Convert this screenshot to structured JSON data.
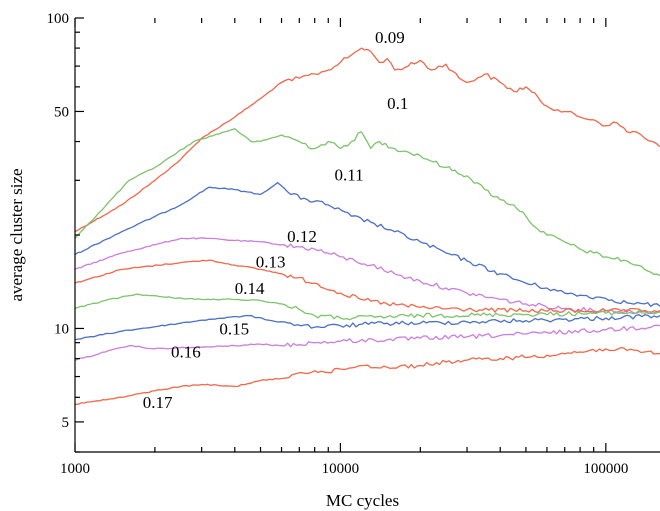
{
  "chart_data": {
    "type": "line",
    "title": "",
    "xlabel": "MC cycles",
    "ylabel": "average cluster size",
    "x_scale": "log",
    "y_scale": "log",
    "xlim": [
      1000,
      160000
    ],
    "ylim": [
      4,
      100
    ],
    "grid": false,
    "legend": "none",
    "x_ticks": [
      {
        "value": 1000,
        "label": "1000"
      },
      {
        "value": 10000,
        "label": "10000"
      },
      {
        "value": 100000,
        "label": "100000"
      }
    ],
    "y_ticks": [
      {
        "value": 5,
        "label": "5"
      },
      {
        "value": 10,
        "label": "10"
      },
      {
        "value": 50,
        "label": "50"
      },
      {
        "value": 100,
        "label": "100"
      }
    ],
    "series": [
      {
        "name": "0.09",
        "color": "#f0684a",
        "label_at": [
          13500,
          83
        ],
        "points": [
          [
            1000,
            20.5
          ],
          [
            1500,
            25
          ],
          [
            2000,
            30
          ],
          [
            2500,
            35
          ],
          [
            3000,
            41
          ],
          [
            4000,
            48
          ],
          [
            5000,
            55
          ],
          [
            6000,
            62
          ],
          [
            7000,
            64
          ],
          [
            8000,
            66
          ],
          [
            9000,
            68
          ],
          [
            10000,
            72
          ],
          [
            11000,
            76
          ],
          [
            12000,
            80
          ],
          [
            13000,
            78
          ],
          [
            14000,
            72
          ],
          [
            15000,
            74
          ],
          [
            16000,
            68
          ],
          [
            18000,
            70
          ],
          [
            20000,
            73
          ],
          [
            22000,
            68
          ],
          [
            25000,
            71
          ],
          [
            28000,
            64
          ],
          [
            30000,
            62
          ],
          [
            35000,
            66
          ],
          [
            40000,
            62
          ],
          [
            45000,
            58
          ],
          [
            50000,
            60
          ],
          [
            60000,
            52
          ],
          [
            70000,
            50
          ],
          [
            80000,
            48
          ],
          [
            90000,
            47
          ],
          [
            100000,
            45
          ],
          [
            110000,
            46
          ],
          [
            120000,
            43
          ],
          [
            130000,
            43
          ],
          [
            140000,
            41
          ],
          [
            150000,
            40
          ],
          [
            160000,
            38.5
          ]
        ]
      },
      {
        "name": "0.1",
        "color": "#7cc36a",
        "label_at": [
          15000,
          51
        ],
        "points": [
          [
            1000,
            19.5
          ],
          [
            1600,
            30
          ],
          [
            2000,
            33
          ],
          [
            2800,
            40
          ],
          [
            4000,
            44
          ],
          [
            4600,
            40
          ],
          [
            5000,
            40
          ],
          [
            6000,
            42
          ],
          [
            7000,
            40
          ],
          [
            8000,
            38
          ],
          [
            9000,
            40
          ],
          [
            10000,
            38
          ],
          [
            11000,
            40
          ],
          [
            12000,
            43
          ],
          [
            13000,
            38
          ],
          [
            14000,
            40
          ],
          [
            16000,
            38
          ],
          [
            18000,
            37
          ],
          [
            20000,
            36
          ],
          [
            25000,
            33
          ],
          [
            30000,
            31
          ],
          [
            35000,
            28
          ],
          [
            40000,
            26
          ],
          [
            45000,
            25
          ],
          [
            50000,
            23
          ],
          [
            55000,
            21
          ],
          [
            60000,
            20
          ],
          [
            70000,
            19
          ],
          [
            80000,
            18
          ],
          [
            90000,
            17.5
          ],
          [
            100000,
            17
          ],
          [
            120000,
            16.5
          ],
          [
            140000,
            15.5
          ],
          [
            160000,
            14.8
          ]
        ]
      },
      {
        "name": "0.11",
        "color": "#4a6fc8",
        "label_at": [
          9500,
          30
        ],
        "points": [
          [
            1000,
            17.3
          ],
          [
            1500,
            20.5
          ],
          [
            2500,
            25
          ],
          [
            3200,
            28.5
          ],
          [
            4000,
            28
          ],
          [
            5000,
            27
          ],
          [
            5800,
            29.5
          ],
          [
            6500,
            27
          ],
          [
            7500,
            26
          ],
          [
            9000,
            25
          ],
          [
            11000,
            23
          ],
          [
            13000,
            22
          ],
          [
            16000,
            20.5
          ],
          [
            20000,
            19
          ],
          [
            25000,
            17.5
          ],
          [
            30000,
            16.5
          ],
          [
            40000,
            15
          ],
          [
            50000,
            14
          ],
          [
            60000,
            13.5
          ],
          [
            70000,
            13
          ],
          [
            80000,
            12.8
          ],
          [
            100000,
            12.5
          ],
          [
            120000,
            12.1
          ],
          [
            140000,
            12
          ],
          [
            160000,
            11.8
          ]
        ]
      },
      {
        "name": "0.12",
        "color": "#cc7ddc",
        "label_at": [
          6300,
          19
        ],
        "points": [
          [
            1000,
            15.5
          ],
          [
            1500,
            17.5
          ],
          [
            2500,
            19.5
          ],
          [
            3200,
            19.5
          ],
          [
            4000,
            19.2
          ],
          [
            5000,
            19
          ],
          [
            6000,
            18.6
          ],
          [
            8000,
            18
          ],
          [
            10000,
            17
          ],
          [
            13000,
            16
          ],
          [
            16000,
            15
          ],
          [
            20000,
            14.2
          ],
          [
            25000,
            13.5
          ],
          [
            30000,
            13
          ],
          [
            40000,
            12.4
          ],
          [
            50000,
            12
          ],
          [
            70000,
            11.6
          ],
          [
            100000,
            11.4
          ],
          [
            160000,
            11.3
          ]
        ]
      },
      {
        "name": "0.13",
        "color": "#f0684a",
        "label_at": [
          4800,
          15.7
        ],
        "points": [
          [
            1000,
            14
          ],
          [
            1500,
            15.5
          ],
          [
            2500,
            16.3
          ],
          [
            3200,
            16.6
          ],
          [
            4000,
            16
          ],
          [
            5000,
            15.5
          ],
          [
            6000,
            15
          ],
          [
            8000,
            14
          ],
          [
            10000,
            13
          ],
          [
            12000,
            12.4
          ],
          [
            15000,
            12
          ],
          [
            20000,
            11.7
          ],
          [
            30000,
            11.5
          ],
          [
            50000,
            11.4
          ],
          [
            100000,
            11.4
          ],
          [
            160000,
            11.4
          ]
        ]
      },
      {
        "name": "0.14",
        "color": "#7cc36a",
        "label_at": [
          4000,
          12.9
        ],
        "points": [
          [
            1000,
            11.6
          ],
          [
            1300,
            12.3
          ],
          [
            1700,
            12.9
          ],
          [
            2200,
            12.6
          ],
          [
            3000,
            12.4
          ],
          [
            4000,
            12.4
          ],
          [
            5000,
            12.3
          ],
          [
            6000,
            12
          ],
          [
            7000,
            11.5
          ],
          [
            8000,
            11
          ],
          [
            10000,
            10.8
          ],
          [
            15000,
            10.9
          ],
          [
            20000,
            11
          ],
          [
            50000,
            11.1
          ],
          [
            100000,
            11.2
          ],
          [
            160000,
            11.3
          ]
        ]
      },
      {
        "name": "0.15",
        "color": "#4a6fc8",
        "label_at": [
          3500,
          9.55
        ],
        "points": [
          [
            1000,
            9.2
          ],
          [
            1500,
            9.8
          ],
          [
            2500,
            10.4
          ],
          [
            3200,
            10.7
          ],
          [
            4500,
            11
          ],
          [
            5500,
            10.6
          ],
          [
            6500,
            10.4
          ],
          [
            8000,
            10.1
          ],
          [
            10000,
            10.2
          ],
          [
            15000,
            10.4
          ],
          [
            20000,
            10.4
          ],
          [
            30000,
            10.5
          ],
          [
            50000,
            10.6
          ],
          [
            100000,
            10.8
          ],
          [
            160000,
            11
          ]
        ]
      },
      {
        "name": "0.16",
        "color": "#cc7ddc",
        "label_at": [
          2300,
          8.05
        ],
        "points": [
          [
            1000,
            7.9
          ],
          [
            1300,
            8.4
          ],
          [
            1600,
            8.8
          ],
          [
            2000,
            8.6
          ],
          [
            3000,
            8.7
          ],
          [
            4000,
            8.8
          ],
          [
            5000,
            8.9
          ],
          [
            6000,
            8.8
          ],
          [
            8000,
            9
          ],
          [
            10000,
            9.1
          ],
          [
            15000,
            9.2
          ],
          [
            20000,
            9.3
          ],
          [
            30000,
            9.4
          ],
          [
            50000,
            9.6
          ],
          [
            100000,
            9.9
          ],
          [
            160000,
            10.2
          ]
        ]
      },
      {
        "name": "0.17",
        "color": "#f0684a",
        "label_at": [
          1800,
          5.55
        ],
        "points": [
          [
            1000,
            5.7
          ],
          [
            1500,
            6.0
          ],
          [
            2000,
            6.3
          ],
          [
            2500,
            6.5
          ],
          [
            3000,
            6.6
          ],
          [
            4000,
            6.5
          ],
          [
            5000,
            6.8
          ],
          [
            6000,
            6.9
          ],
          [
            7000,
            7.2
          ],
          [
            8000,
            7.3
          ],
          [
            9000,
            7.2
          ],
          [
            10000,
            7.4
          ],
          [
            12000,
            7.6
          ],
          [
            15000,
            7.5
          ],
          [
            20000,
            7.6
          ],
          [
            25000,
            7.8
          ],
          [
            30000,
            7.9
          ],
          [
            40000,
            8
          ],
          [
            60000,
            8.2
          ],
          [
            80000,
            8.4
          ],
          [
            100000,
            8.6
          ],
          [
            120000,
            8.5
          ],
          [
            140000,
            8.4
          ],
          [
            160000,
            8.3
          ]
        ]
      }
    ]
  }
}
